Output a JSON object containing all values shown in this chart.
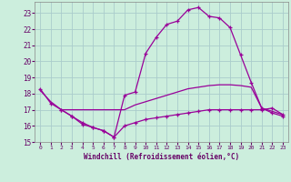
{
  "xlabel": "Windchill (Refroidissement éolien,°C)",
  "bg_color": "#cceedd",
  "grid_color": "#aacccc",
  "line_color": "#990099",
  "axis_color": "#660066",
  "xlim": [
    -0.5,
    23.5
  ],
  "ylim": [
    15,
    23.7
  ],
  "yticks": [
    15,
    16,
    17,
    18,
    19,
    20,
    21,
    22,
    23
  ],
  "xticks": [
    0,
    1,
    2,
    3,
    4,
    5,
    6,
    7,
    8,
    9,
    10,
    11,
    12,
    13,
    14,
    15,
    16,
    17,
    18,
    19,
    20,
    21,
    22,
    23
  ],
  "line1_x": [
    0,
    1,
    2,
    3,
    4,
    5,
    6,
    7,
    8,
    9,
    10,
    11,
    12,
    13,
    14,
    15,
    16,
    17,
    18,
    19,
    20,
    21,
    22,
    23
  ],
  "line1_y": [
    18.3,
    17.4,
    17.0,
    16.6,
    16.1,
    15.9,
    15.7,
    15.3,
    17.9,
    18.1,
    20.5,
    21.5,
    22.3,
    22.5,
    23.2,
    23.35,
    22.8,
    22.7,
    22.1,
    20.4,
    18.7,
    17.1,
    16.8,
    16.6
  ],
  "line2_x": [
    0,
    1,
    2,
    3,
    4,
    5,
    6,
    7,
    8,
    9,
    10,
    11,
    12,
    13,
    14,
    15,
    16,
    17,
    18,
    19,
    20,
    21,
    22,
    23
  ],
  "line2_y": [
    18.2,
    17.5,
    17.0,
    17.0,
    17.0,
    17.0,
    17.0,
    17.0,
    17.0,
    17.3,
    17.5,
    17.7,
    17.9,
    18.1,
    18.3,
    18.4,
    18.5,
    18.55,
    18.55,
    18.5,
    18.4,
    17.1,
    16.9,
    16.7
  ],
  "line3_x": [
    2,
    3,
    4,
    5,
    6,
    7,
    8,
    9,
    10,
    11,
    12,
    13,
    14,
    15,
    16,
    17,
    18,
    19,
    20,
    21,
    22,
    23
  ],
  "line3_y": [
    17.0,
    16.6,
    16.2,
    15.9,
    15.7,
    15.3,
    16.0,
    16.2,
    16.4,
    16.5,
    16.6,
    16.7,
    16.8,
    16.9,
    17.0,
    17.0,
    17.0,
    17.0,
    17.0,
    17.0,
    17.1,
    16.7
  ],
  "marker": "+"
}
